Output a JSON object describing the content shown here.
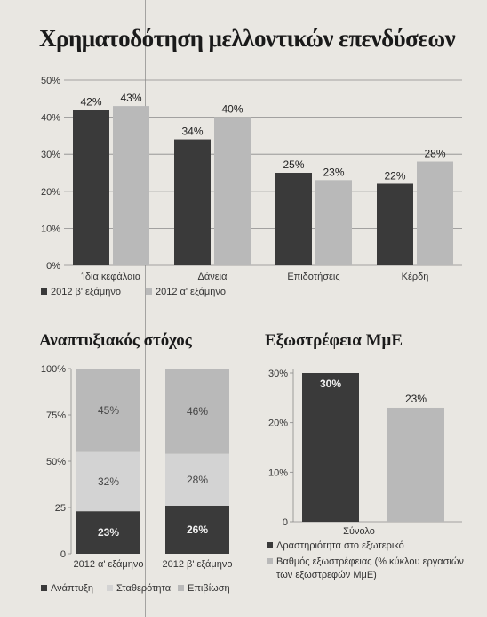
{
  "colors": {
    "dark": "#3a3a3a",
    "light": "#b9b9b9",
    "mid": "#d3d3d3",
    "grid": "#8a8a8a"
  },
  "chart_data": [
    {
      "type": "bar",
      "title": "Χρηματοδότηση μελλοντικών επενδύσεων",
      "categories": [
        "Ίδια κεφάλαια",
        "Δάνεια",
        "Επιδοτήσεις",
        "Κέρδη"
      ],
      "series": [
        {
          "name": "2012 β' εξάμηνο",
          "values": [
            42,
            34,
            25,
            22
          ],
          "labels": [
            "42%",
            "34%",
            "25%",
            "22%"
          ]
        },
        {
          "name": "2012 α' εξάμηνο",
          "values": [
            43,
            40,
            23,
            28
          ],
          "labels": [
            "43%",
            "40%",
            "23%",
            "28%"
          ]
        }
      ],
      "yticks": [
        "0%",
        "10%",
        "20%",
        "30%",
        "40%",
        "50%"
      ],
      "ylim": [
        0,
        50
      ],
      "grid": true,
      "legend": "bottom-left"
    },
    {
      "type": "bar",
      "stacked": true,
      "title": "Αναπτυξιακός στόχος",
      "categories": [
        "2012 α' εξάμηνο",
        "2012 β' εξάμηνο"
      ],
      "series": [
        {
          "name": "Ανάπτυξη",
          "values": [
            23,
            26
          ],
          "labels": [
            "23%",
            "26%"
          ]
        },
        {
          "name": "Σταθερότητα",
          "values": [
            32,
            28
          ],
          "labels": [
            "32%",
            "28%"
          ]
        },
        {
          "name": "Επιβίωση",
          "values": [
            45,
            46
          ],
          "labels": [
            "45%",
            "46%"
          ]
        }
      ],
      "yticks": [
        "0",
        "25",
        "50%",
        "75%",
        "100%"
      ],
      "ylim": [
        0,
        100
      ],
      "legend": "bottom"
    },
    {
      "type": "bar",
      "title": "Εξωστρέφεια ΜμΕ",
      "categories": [
        "Σύνολο"
      ],
      "series": [
        {
          "name": "Δραστηριότητα στο εξωτερικό",
          "values": [
            30
          ],
          "labels": [
            "30%"
          ]
        },
        {
          "name": "Βαθμός εξωστρέφειας (% κύκλου εργασιών των εξωστρεφών ΜμΕ)",
          "values": [
            23
          ],
          "labels": [
            "23%"
          ]
        }
      ],
      "yticks": [
        "0",
        "10%",
        "20%",
        "30%"
      ],
      "ylim": [
        0,
        30
      ],
      "legend": "bottom"
    }
  ]
}
